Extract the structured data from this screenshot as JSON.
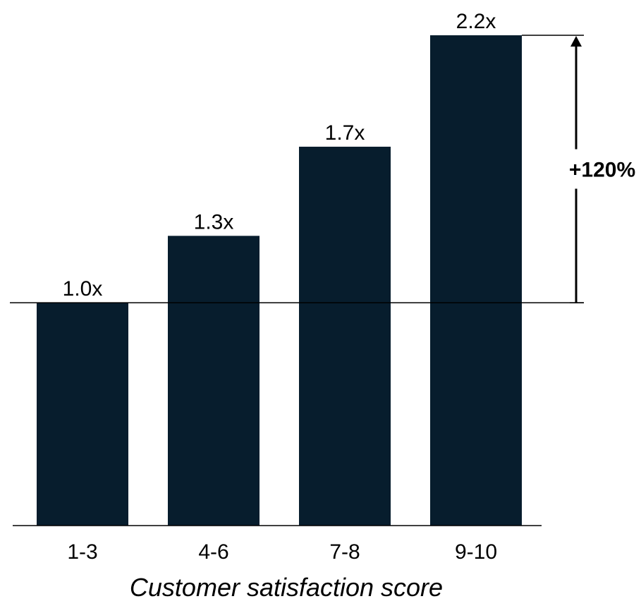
{
  "chart_data": {
    "type": "bar",
    "categories": [
      "1-3",
      "4-6",
      "7-8",
      "9-10"
    ],
    "values": [
      1.0,
      1.3,
      1.7,
      2.2
    ],
    "value_labels": [
      "1.0x",
      "1.3x",
      "1.7x",
      "2.2x"
    ],
    "xlabel": "Customer satisfaction score",
    "ylabel": "",
    "title": "",
    "ylim": [
      0,
      2.2
    ],
    "reference_line": 1.0,
    "annotation": {
      "label": "+120%",
      "from": 1.0,
      "to": 2.2
    },
    "bar_color": "#071d2d",
    "grid": false
  }
}
